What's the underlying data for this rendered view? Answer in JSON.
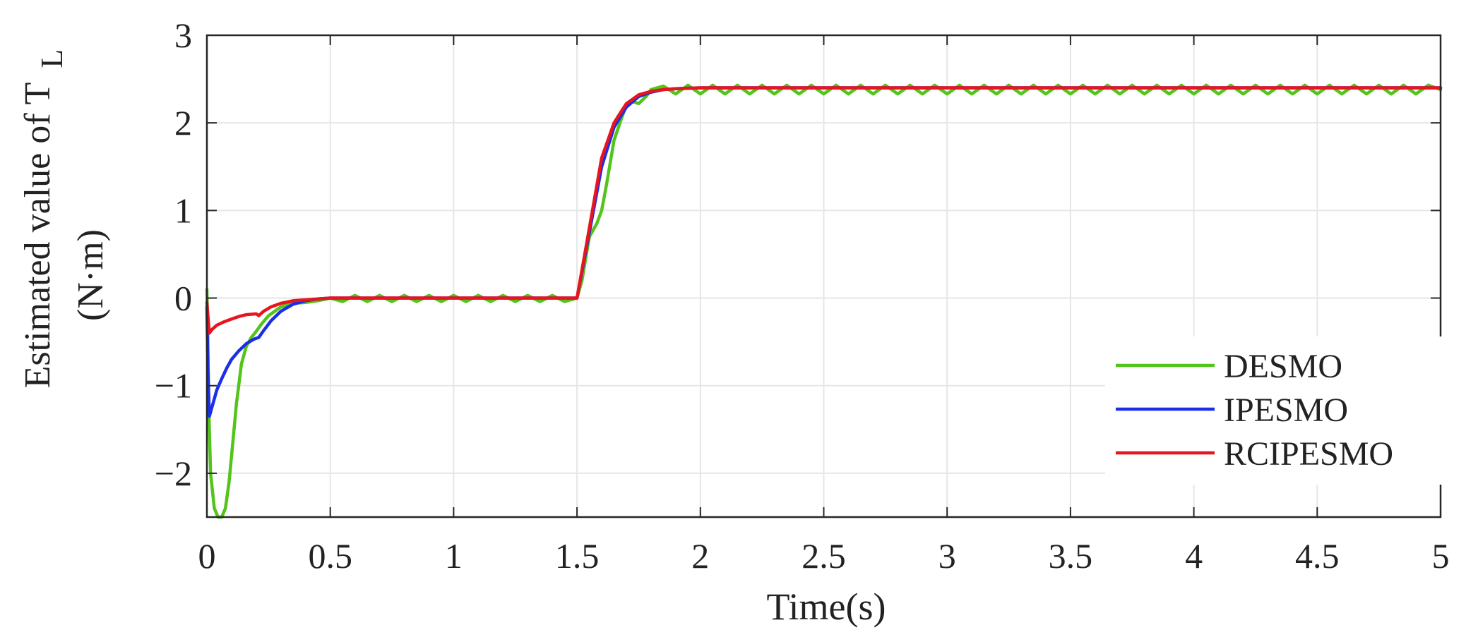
{
  "chart_data": {
    "type": "line",
    "title": "",
    "xlabel": "Time(s)",
    "ylabel_line1": "Estimated value of T",
    "ylabel_subscript": "L",
    "ylabel_line2": "(N·m)",
    "xlim": [
      0,
      5
    ],
    "ylim": [
      -2.5,
      3
    ],
    "xticks": [
      0,
      0.5,
      1,
      1.5,
      2,
      2.5,
      3,
      3.5,
      4,
      4.5,
      5
    ],
    "xtick_labels": [
      "0",
      "0.5",
      "1",
      "1.5",
      "2",
      "2.5",
      "3",
      "3.5",
      "4",
      "4.5",
      "5"
    ],
    "yticks": [
      -2,
      -1,
      0,
      1,
      2,
      3
    ],
    "ytick_labels": [
      "−2",
      "−1",
      "0",
      "1",
      "2",
      "3"
    ],
    "grid": true,
    "legend_position": "bottom-right",
    "series": [
      {
        "name": "DESMO",
        "color": "#52c41a",
        "x": [
          0,
          0.003,
          0.008,
          0.015,
          0.03,
          0.045,
          0.06,
          0.075,
          0.09,
          0.1,
          0.12,
          0.14,
          0.16,
          0.18,
          0.2,
          0.22,
          0.25,
          0.3,
          0.35,
          0.4,
          0.45,
          0.5,
          0.55,
          0.6,
          0.65,
          0.7,
          0.75,
          0.8,
          0.85,
          0.9,
          0.95,
          1.0,
          1.05,
          1.1,
          1.15,
          1.2,
          1.25,
          1.3,
          1.35,
          1.4,
          1.45,
          1.5,
          1.52,
          1.55,
          1.58,
          1.6,
          1.62,
          1.65,
          1.68,
          1.7,
          1.72,
          1.75,
          1.78,
          1.8,
          1.85,
          1.9,
          1.95,
          2.0,
          2.05,
          2.1,
          2.15,
          2.2,
          2.25,
          2.3,
          2.35,
          2.4,
          2.45,
          2.5,
          2.55,
          2.6,
          2.65,
          2.7,
          2.75,
          2.8,
          2.85,
          2.9,
          2.95,
          3.0,
          3.05,
          3.1,
          3.15,
          3.2,
          3.25,
          3.3,
          3.35,
          3.4,
          3.45,
          3.5,
          3.55,
          3.6,
          3.65,
          3.7,
          3.75,
          3.8,
          3.85,
          3.9,
          3.95,
          4.0,
          4.05,
          4.1,
          4.15,
          4.2,
          4.25,
          4.3,
          4.35,
          4.4,
          4.45,
          4.5,
          4.55,
          4.6,
          4.65,
          4.7,
          4.75,
          4.8,
          4.85,
          4.9,
          4.95,
          5.0
        ],
        "y": [
          0.1,
          -0.3,
          -1.3,
          -2.0,
          -2.4,
          -2.5,
          -2.5,
          -2.4,
          -2.1,
          -1.8,
          -1.2,
          -0.75,
          -0.55,
          -0.45,
          -0.38,
          -0.3,
          -0.2,
          -0.1,
          -0.06,
          -0.05,
          -0.03,
          0.0,
          -0.04,
          0.03,
          -0.04,
          0.03,
          -0.04,
          0.03,
          -0.04,
          0.03,
          -0.04,
          0.03,
          -0.04,
          0.03,
          -0.04,
          0.03,
          -0.04,
          0.03,
          -0.04,
          0.03,
          -0.04,
          0.0,
          0.2,
          0.7,
          0.85,
          1.0,
          1.3,
          1.8,
          2.05,
          2.2,
          2.25,
          2.22,
          2.3,
          2.38,
          2.42,
          2.33,
          2.43,
          2.33,
          2.43,
          2.33,
          2.43,
          2.33,
          2.43,
          2.33,
          2.43,
          2.33,
          2.43,
          2.33,
          2.43,
          2.33,
          2.43,
          2.33,
          2.43,
          2.33,
          2.43,
          2.33,
          2.43,
          2.33,
          2.43,
          2.33,
          2.43,
          2.33,
          2.43,
          2.33,
          2.43,
          2.33,
          2.43,
          2.33,
          2.43,
          2.33,
          2.43,
          2.33,
          2.43,
          2.33,
          2.43,
          2.33,
          2.43,
          2.33,
          2.43,
          2.33,
          2.43,
          2.33,
          2.43,
          2.33,
          2.43,
          2.33,
          2.43,
          2.33,
          2.43,
          2.33,
          2.43,
          2.33,
          2.43,
          2.33,
          2.43,
          2.33,
          2.43,
          2.38
        ]
      },
      {
        "name": "IPESMO",
        "color": "#1a2fe6",
        "x": [
          0,
          0.004,
          0.01,
          0.02,
          0.04,
          0.06,
          0.08,
          0.1,
          0.13,
          0.16,
          0.19,
          0.21,
          0.23,
          0.26,
          0.3,
          0.35,
          0.4,
          0.45,
          0.5,
          0.6,
          0.8,
          1.0,
          1.2,
          1.4,
          1.5,
          1.55,
          1.6,
          1.65,
          1.7,
          1.75,
          1.8,
          1.85,
          1.9,
          2.0,
          2.5,
          3.0,
          3.5,
          4.0,
          4.5,
          5.0
        ],
        "y": [
          -0.1,
          -0.8,
          -1.35,
          -1.25,
          -1.05,
          -0.92,
          -0.8,
          -0.7,
          -0.6,
          -0.52,
          -0.47,
          -0.45,
          -0.37,
          -0.26,
          -0.15,
          -0.07,
          -0.03,
          -0.01,
          0.0,
          0.0,
          0.0,
          0.0,
          0.0,
          0.0,
          0.0,
          0.75,
          1.5,
          1.95,
          2.18,
          2.3,
          2.35,
          2.38,
          2.39,
          2.4,
          2.4,
          2.4,
          2.4,
          2.4,
          2.4,
          2.4
        ]
      },
      {
        "name": "RCIPESMO",
        "color": "#e8141e",
        "x": [
          0,
          0.004,
          0.01,
          0.02,
          0.04,
          0.07,
          0.1,
          0.13,
          0.16,
          0.2,
          0.21,
          0.23,
          0.26,
          0.3,
          0.35,
          0.4,
          0.45,
          0.5,
          0.6,
          0.8,
          1.0,
          1.2,
          1.4,
          1.5,
          1.55,
          1.6,
          1.65,
          1.7,
          1.75,
          1.8,
          1.85,
          1.9,
          2.0,
          2.5,
          3.0,
          3.5,
          4.0,
          4.5,
          5.0
        ],
        "y": [
          -0.05,
          -0.2,
          -0.4,
          -0.36,
          -0.31,
          -0.27,
          -0.24,
          -0.21,
          -0.19,
          -0.18,
          -0.2,
          -0.15,
          -0.1,
          -0.06,
          -0.03,
          -0.02,
          -0.01,
          0.0,
          0.0,
          0.0,
          0.0,
          0.0,
          0.0,
          0.0,
          0.8,
          1.6,
          2.0,
          2.22,
          2.32,
          2.36,
          2.38,
          2.39,
          2.4,
          2.4,
          2.4,
          2.4,
          2.4,
          2.4,
          2.4
        ]
      }
    ]
  }
}
